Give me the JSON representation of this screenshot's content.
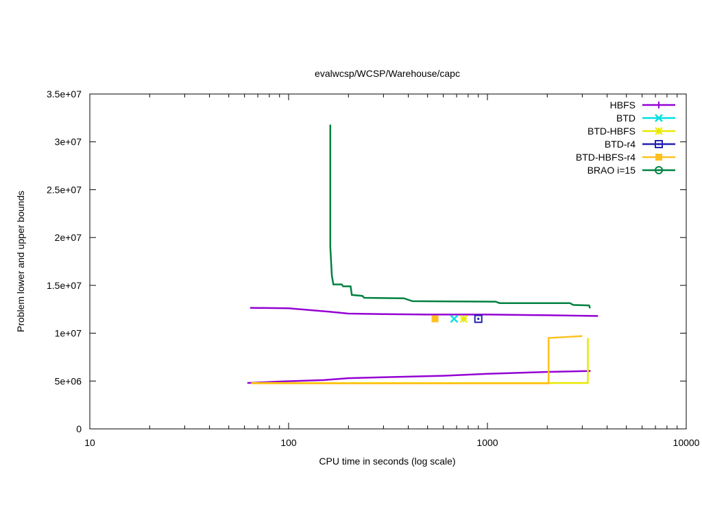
{
  "chart_data": {
    "type": "line",
    "title": "evalwcsp/WCSP/Warehouse/capc",
    "xlabel": "CPU time in seconds (log scale)",
    "ylabel": "Problem lower and upper bounds",
    "xscale": "log",
    "xlim": [
      10,
      10000
    ],
    "ylim": [
      0,
      35000000
    ],
    "xticks": [
      10,
      100,
      1000,
      10000
    ],
    "xtick_labels": [
      "10",
      "100",
      "1000",
      "10000"
    ],
    "yticks": [
      0,
      5000000,
      10000000,
      15000000,
      20000000,
      25000000,
      30000000,
      35000000
    ],
    "ytick_labels": [
      "0",
      "5e+06",
      "1e+07",
      "1.5e+07",
      "2e+07",
      "2.5e+07",
      "3e+07",
      "3.5e+07"
    ],
    "grid": false,
    "legend_position": "top-right",
    "series": [
      {
        "name": "HBFS",
        "color": "#9400d3",
        "marker": "plus",
        "segments": [
          [
            [
              64,
              12650000
            ],
            [
              100,
              12600000
            ],
            [
              160,
              12250000
            ],
            [
              200,
              12050000
            ],
            [
              300,
              12000000
            ],
            [
              500,
              11950000
            ],
            [
              1000,
              11950000
            ],
            [
              2000,
              11880000
            ],
            [
              3600,
              11800000
            ]
          ],
          [
            [
              62,
              4800000
            ],
            [
              90,
              4950000
            ],
            [
              150,
              5100000
            ],
            [
              200,
              5300000
            ],
            [
              300,
              5400000
            ],
            [
              600,
              5550000
            ],
            [
              1000,
              5750000
            ],
            [
              2000,
              5950000
            ],
            [
              3300,
              6050000
            ]
          ]
        ]
      },
      {
        "name": "BTD",
        "color": "#00e0e0",
        "marker": "cross",
        "segments": [
          [
            [
              680,
              11500000
            ]
          ]
        ]
      },
      {
        "name": "BTD-HBFS",
        "color": "#e8e800",
        "marker": "x-star",
        "segments": [
          [
            [
              65,
              4800000
            ],
            [
              2000,
              4800000
            ],
            [
              3200,
              4800000
            ],
            [
              3200,
              9500000
            ]
          ],
          [
            [
              760,
              11500000
            ]
          ]
        ]
      },
      {
        "name": "BTD-r4",
        "color": "#2020b0",
        "marker": "open-square",
        "segments": [
          [
            [
              900,
              11500000
            ]
          ]
        ]
      },
      {
        "name": "BTD-HBFS-r4",
        "color": "#ffc020",
        "marker": "filled-square",
        "segments": [
          [
            [
              65,
              4750000
            ],
            [
              2030,
              4750000
            ],
            [
              2030,
              9500000
            ],
            [
              3000,
              9700000
            ]
          ],
          [
            [
              545,
              11500000
            ]
          ]
        ]
      },
      {
        "name": "BRAO i=15",
        "color": "#008040",
        "marker": "circle",
        "segments": [
          [
            [
              162,
              31800000
            ],
            [
              162,
              19000000
            ],
            [
              165,
              16000000
            ],
            [
              168,
              15100000
            ],
            [
              185,
              15100000
            ],
            [
              188,
              14900000
            ],
            [
              205,
              14900000
            ],
            [
              208,
              14000000
            ],
            [
              235,
              13900000
            ],
            [
              240,
              13700000
            ],
            [
              380,
              13650000
            ],
            [
              420,
              13350000
            ],
            [
              1100,
              13300000
            ],
            [
              1150,
              13150000
            ],
            [
              2600,
              13150000
            ],
            [
              2700,
              12950000
            ],
            [
              3250,
              12900000
            ],
            [
              3280,
              12600000
            ]
          ]
        ]
      }
    ]
  }
}
